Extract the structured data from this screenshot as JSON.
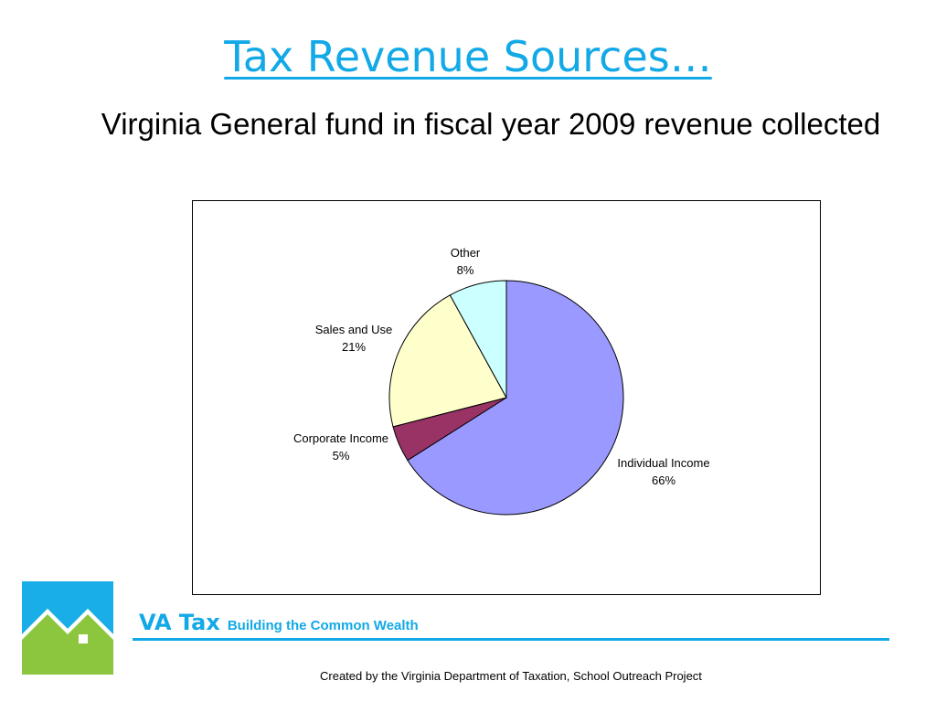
{
  "slide": {
    "title": "Tax Revenue Sources…",
    "subtitle": "Virginia General fund in fiscal year 2009 revenue collected",
    "brand_name": "VA Tax",
    "brand_tagline": "Building the Common Wealth",
    "footer": "Created by the Virginia Department of Taxation, School Outreach Project"
  },
  "colors": {
    "accent": "#12a9e6",
    "logo_blue": "#1aaee8",
    "logo_green": "#8cc63f"
  },
  "chart_data": {
    "type": "pie",
    "title": "",
    "slices": [
      {
        "label": "Individual Income",
        "percent_label": "66%",
        "value": 66,
        "color": "#9999ff"
      },
      {
        "label": "Corporate Income",
        "percent_label": "5%",
        "value": 5,
        "color": "#993366"
      },
      {
        "label": "Sales and Use",
        "percent_label": "21%",
        "value": 21,
        "color": "#ffffcc"
      },
      {
        "label": "Other",
        "percent_label": "8%",
        "value": 8,
        "color": "#ccffff"
      }
    ],
    "legend": "none",
    "labels": "outside"
  }
}
